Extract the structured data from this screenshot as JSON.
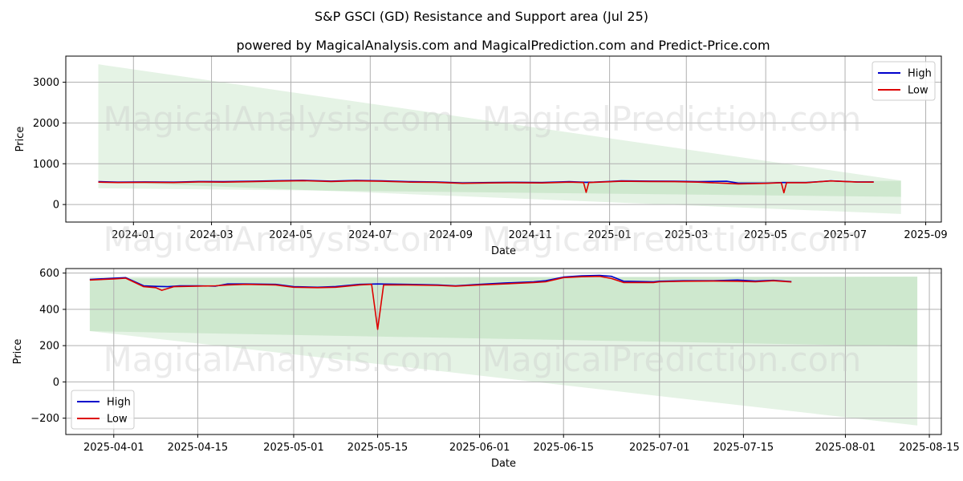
{
  "figure": {
    "title": "S&P GSCI (GD) Resistance and Support area (Jul 25)",
    "subtitle": "powered by MagicalAnalysis.com and MagicalPrediction.com and Predict-Price.com",
    "watermark_left": "MagicalAnalysis.com",
    "watermark_right": "MagicalPrediction.com",
    "colors": {
      "high": "#0000cc",
      "low": "#dd0000",
      "band": "#2ca02c",
      "grid": "#b0b0b0"
    }
  },
  "chart_data": [
    {
      "type": "line",
      "xlabel": "Date",
      "ylabel": "Price",
      "xlim": [
        "2023-11-10",
        "2025-09-13"
      ],
      "ylim": [
        -430,
        3640
      ],
      "xticks": [
        "2024-01",
        "2024-03",
        "2024-05",
        "2024-07",
        "2024-09",
        "2024-11",
        "2025-01",
        "2025-03",
        "2025-05",
        "2025-07",
        "2025-09"
      ],
      "yticks": [
        0,
        1000,
        2000,
        3000
      ],
      "legend": {
        "position": "top-right",
        "entries": [
          "High",
          "Low"
        ]
      },
      "bands": [
        {
          "x": [
            "2023-12-05",
            "2025-08-13"
          ],
          "upper": [
            3440,
            590
          ],
          "lower": [
            560,
            -230
          ]
        },
        {
          "x": [
            "2023-12-05",
            "2025-08-13"
          ],
          "upper": [
            560,
            580
          ],
          "lower": [
            400,
            190
          ]
        }
      ],
      "series": [
        {
          "name": "High",
          "x": [
            "2023-12-05",
            "2023-12-20",
            "2024-01-10",
            "2024-02-01",
            "2024-02-20",
            "2024-03-10",
            "2024-04-01",
            "2024-04-20",
            "2024-05-10",
            "2024-06-01",
            "2024-06-20",
            "2024-07-10",
            "2024-08-01",
            "2024-08-20",
            "2024-09-10",
            "2024-10-01",
            "2024-10-20",
            "2024-11-10",
            "2024-12-01",
            "2024-12-14",
            "2024-12-20",
            "2025-01-10",
            "2025-02-01",
            "2025-02-20",
            "2025-03-10",
            "2025-04-01",
            "2025-04-10",
            "2025-05-01",
            "2025-05-14",
            "2025-06-01",
            "2025-06-20",
            "2025-07-10",
            "2025-07-23"
          ],
          "values": [
            560,
            550,
            555,
            550,
            565,
            560,
            570,
            585,
            595,
            575,
            590,
            580,
            560,
            555,
            530,
            540,
            545,
            540,
            560,
            545,
            550,
            580,
            575,
            570,
            560,
            570,
            525,
            525,
            540,
            540,
            580,
            555,
            555
          ]
        },
        {
          "name": "Low",
          "x": [
            "2023-12-05",
            "2023-12-20",
            "2024-01-10",
            "2024-02-01",
            "2024-02-20",
            "2024-03-10",
            "2024-04-01",
            "2024-04-20",
            "2024-05-10",
            "2024-06-01",
            "2024-06-20",
            "2024-07-10",
            "2024-08-01",
            "2024-08-20",
            "2024-09-10",
            "2024-10-01",
            "2024-10-20",
            "2024-11-10",
            "2024-12-01",
            "2024-12-12",
            "2024-12-14",
            "2024-12-16",
            "2025-01-10",
            "2025-02-01",
            "2025-02-20",
            "2025-03-10",
            "2025-04-01",
            "2025-04-10",
            "2025-05-01",
            "2025-05-13",
            "2025-05-15",
            "2025-05-17",
            "2025-06-01",
            "2025-06-20",
            "2025-07-10",
            "2025-07-23"
          ],
          "values": [
            550,
            540,
            545,
            540,
            555,
            550,
            560,
            575,
            585,
            565,
            580,
            570,
            550,
            545,
            520,
            530,
            535,
            530,
            550,
            540,
            300,
            540,
            570,
            565,
            560,
            550,
            520,
            505,
            520,
            535,
            290,
            535,
            535,
            578,
            552,
            550
          ]
        }
      ]
    },
    {
      "type": "line",
      "xlabel": "Date",
      "ylabel": "Price",
      "xlim": [
        "2025-03-24",
        "2025-08-17"
      ],
      "ylim": [
        -290,
        625
      ],
      "xticks": [
        "2025-04-01",
        "2025-04-15",
        "2025-05-01",
        "2025-05-15",
        "2025-06-01",
        "2025-06-15",
        "2025-07-01",
        "2025-07-15",
        "2025-08-01",
        "2025-08-15"
      ],
      "yticks": [
        -200,
        0,
        200,
        400,
        600
      ],
      "legend": {
        "position": "lower-left",
        "entries": [
          "High",
          "Low"
        ]
      },
      "bands": [
        {
          "x": [
            "2025-03-28",
            "2025-08-13"
          ],
          "upper": [
            580,
            580
          ],
          "lower": [
            280,
            -240
          ]
        },
        {
          "x": [
            "2025-03-28",
            "2025-08-13"
          ],
          "upper": [
            570,
            580
          ],
          "lower": [
            280,
            195
          ]
        }
      ],
      "series": [
        {
          "name": "High",
          "x": [
            "2025-03-28",
            "2025-04-01",
            "2025-04-03",
            "2025-04-06",
            "2025-04-08",
            "2025-04-10",
            "2025-04-12",
            "2025-04-15",
            "2025-04-18",
            "2025-04-20",
            "2025-04-23",
            "2025-04-28",
            "2025-05-01",
            "2025-05-05",
            "2025-05-08",
            "2025-05-12",
            "2025-05-15",
            "2025-05-20",
            "2025-05-25",
            "2025-05-28",
            "2025-06-01",
            "2025-06-05",
            "2025-06-10",
            "2025-06-12",
            "2025-06-15",
            "2025-06-18",
            "2025-06-21",
            "2025-06-23",
            "2025-06-25",
            "2025-06-30",
            "2025-07-01",
            "2025-07-05",
            "2025-07-10",
            "2025-07-14",
            "2025-07-17",
            "2025-07-20",
            "2025-07-23"
          ],
          "values": [
            565,
            572,
            575,
            530,
            527,
            525,
            530,
            530,
            528,
            540,
            540,
            538,
            525,
            522,
            526,
            538,
            540,
            538,
            535,
            530,
            538,
            545,
            552,
            558,
            578,
            585,
            587,
            582,
            555,
            552,
            555,
            558,
            558,
            562,
            556,
            560,
            553
          ]
        },
        {
          "name": "Low",
          "x": [
            "2025-03-28",
            "2025-04-01",
            "2025-04-03",
            "2025-04-06",
            "2025-04-08",
            "2025-04-09",
            "2025-04-11",
            "2025-04-15",
            "2025-04-18",
            "2025-04-20",
            "2025-04-23",
            "2025-04-28",
            "2025-05-01",
            "2025-05-05",
            "2025-05-08",
            "2025-05-12",
            "2025-05-14",
            "2025-05-15",
            "2025-05-16",
            "2025-05-20",
            "2025-05-25",
            "2025-05-28",
            "2025-06-01",
            "2025-06-05",
            "2025-06-10",
            "2025-06-12",
            "2025-06-15",
            "2025-06-18",
            "2025-06-21",
            "2025-06-23",
            "2025-06-25",
            "2025-06-30",
            "2025-07-01",
            "2025-07-05",
            "2025-07-10",
            "2025-07-14",
            "2025-07-17",
            "2025-07-20",
            "2025-07-23"
          ],
          "values": [
            562,
            568,
            572,
            525,
            520,
            505,
            525,
            528,
            530,
            535,
            538,
            535,
            522,
            520,
            522,
            535,
            538,
            290,
            535,
            535,
            532,
            528,
            535,
            540,
            548,
            552,
            575,
            580,
            582,
            570,
            548,
            548,
            552,
            555,
            556,
            555,
            552,
            558,
            551
          ]
        }
      ]
    }
  ]
}
